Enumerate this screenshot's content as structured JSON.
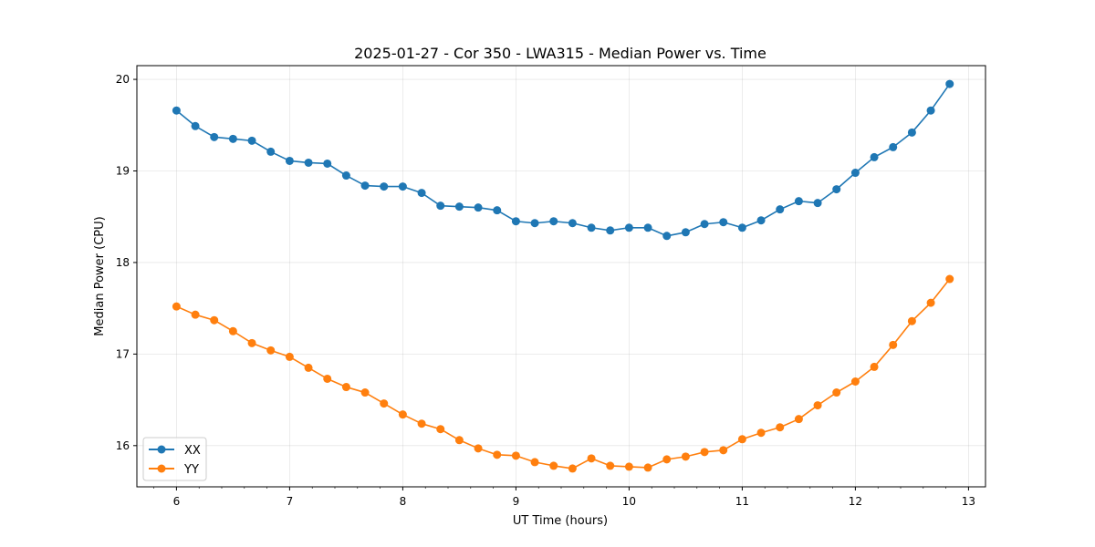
{
  "chart_data": {
    "type": "line",
    "title": "2025-01-27 - Cor 350 - LWA315 - Median Power vs. Time",
    "xlabel": "UT Time (hours)",
    "ylabel": "Median Power (CPU)",
    "xlim": [
      5.65,
      13.15
    ],
    "ylim": [
      15.55,
      20.15
    ],
    "xticks": [
      6,
      7,
      8,
      9,
      10,
      11,
      12,
      13
    ],
    "yticks": [
      16,
      17,
      18,
      19,
      20
    ],
    "x_minor_step": 0.2,
    "grid": true,
    "legend_location": "lower-left",
    "x": [
      6.0,
      6.1667,
      6.3333,
      6.5,
      6.6667,
      6.8333,
      7.0,
      7.1667,
      7.3333,
      7.5,
      7.6667,
      7.8333,
      8.0,
      8.1667,
      8.3333,
      8.5,
      8.6667,
      8.8333,
      9.0,
      9.1667,
      9.3333,
      9.5,
      9.6667,
      9.8333,
      10.0,
      10.1667,
      10.3333,
      10.5,
      10.6667,
      10.8333,
      11.0,
      11.1667,
      11.3333,
      11.5,
      11.6667,
      11.8333,
      12.0,
      12.1667,
      12.3333,
      12.5,
      12.6667,
      12.8333
    ],
    "series": [
      {
        "name": "XX",
        "color": "#1f77b4",
        "values": [
          19.66,
          19.49,
          19.37,
          19.35,
          19.33,
          19.21,
          19.11,
          19.09,
          19.08,
          18.95,
          18.84,
          18.83,
          18.83,
          18.76,
          18.62,
          18.61,
          18.6,
          18.57,
          18.45,
          18.43,
          18.45,
          18.43,
          18.38,
          18.35,
          18.38,
          18.38,
          18.29,
          18.33,
          18.42,
          18.44,
          18.38,
          18.46,
          18.58,
          18.67,
          18.65,
          18.8,
          18.98,
          19.15,
          19.26,
          19.42,
          19.66,
          19.95
        ]
      },
      {
        "name": "YY",
        "color": "#ff7f0e",
        "values": [
          17.52,
          17.43,
          17.37,
          17.25,
          17.12,
          17.04,
          16.97,
          16.85,
          16.73,
          16.64,
          16.58,
          16.46,
          16.34,
          16.24,
          16.18,
          16.06,
          15.97,
          15.9,
          15.89,
          15.82,
          15.78,
          15.75,
          15.86,
          15.78,
          15.77,
          15.76,
          15.85,
          15.88,
          15.93,
          15.95,
          16.07,
          16.14,
          16.2,
          16.29,
          16.44,
          16.58,
          16.7,
          16.86,
          17.1,
          17.36,
          17.56,
          17.82
        ]
      }
    ]
  }
}
